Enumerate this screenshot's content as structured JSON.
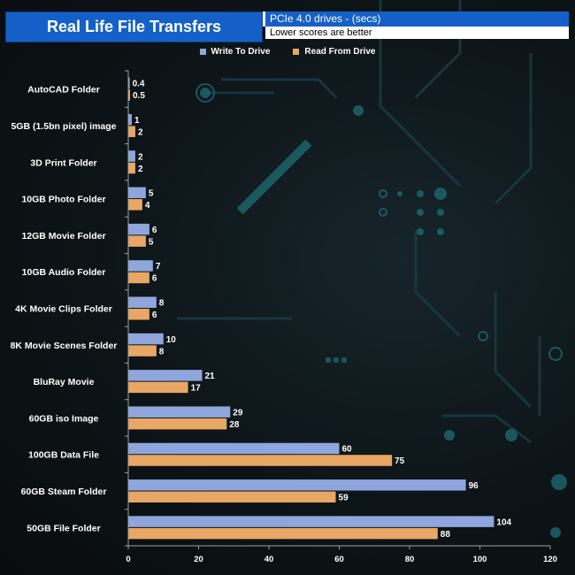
{
  "header": {
    "title": "Real Life File Transfers",
    "subtitle_line1": "PCIe 4.0 drives - (secs)",
    "subtitle_line2": "Lower scores are better"
  },
  "colors": {
    "write": "#8fa6dc",
    "read": "#e8a765",
    "title_bg": "#1560c8"
  },
  "chart_data": {
    "type": "bar",
    "orientation": "horizontal",
    "categories": [
      "AutoCAD Folder",
      "5GB (1.5bn pixel) image",
      "3D Print Folder",
      "10GB Photo Folder",
      "12GB Movie Folder",
      "10GB Audio Folder",
      "4K Movie Clips Folder",
      "8K Movie Scenes Folder",
      "BluRay Movie",
      "60GB iso Image",
      "100GB Data File",
      "60GB Steam Folder",
      "50GB File Folder"
    ],
    "series": [
      {
        "name": "Write To  Drive",
        "values": [
          0.4,
          1,
          2,
          5,
          6,
          7,
          8,
          10,
          21,
          29,
          60,
          96,
          104
        ]
      },
      {
        "name": "Read From  Drive",
        "values": [
          0.5,
          2,
          2,
          4,
          5,
          6,
          6,
          8,
          17,
          28,
          75,
          59,
          88
        ]
      }
    ],
    "xlim": [
      0,
      120
    ],
    "xticks": [
      "0",
      "20",
      "40",
      "60",
      "80",
      "100",
      "120"
    ],
    "legend_position": "top",
    "grid": false
  }
}
